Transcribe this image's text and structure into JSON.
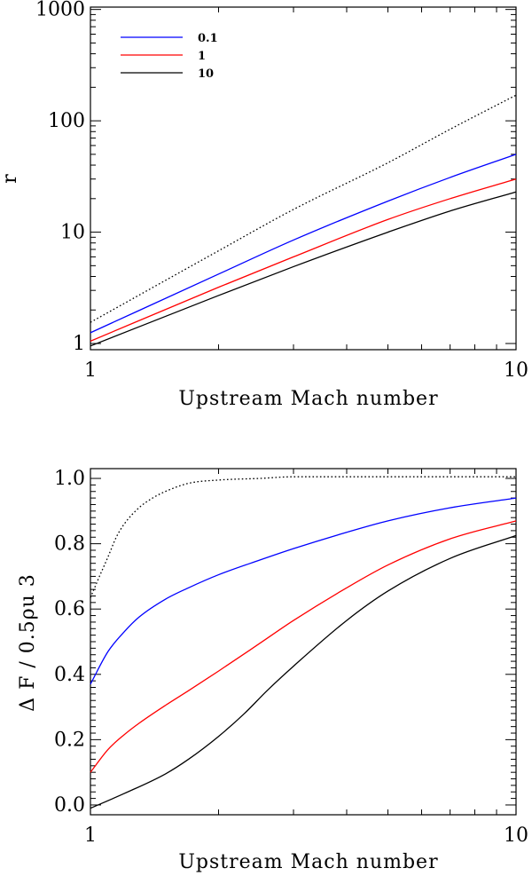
{
  "chart_data": [
    {
      "type": "line",
      "title": "",
      "xlabel": "Upstream Mach number",
      "ylabel": "r",
      "xscale": "log",
      "yscale": "log",
      "xlim": [
        1,
        10
      ],
      "ylim": [
        0.88,
        1050
      ],
      "x_tick_labels": [
        "1",
        "10"
      ],
      "y_tick_labels": [
        "1",
        "10",
        "100",
        "1000"
      ],
      "grid": false,
      "legend_position": "top-left",
      "series": [
        {
          "name": "0.1",
          "color": "#0000ff",
          "style": "solid",
          "x": [
            1,
            2,
            3,
            5,
            7,
            10
          ],
          "y": [
            1.25,
            4.2,
            8.5,
            19,
            31,
            50
          ]
        },
        {
          "name": "1",
          "color": "#ff0000",
          "style": "solid",
          "x": [
            1,
            2,
            3,
            5,
            7,
            10
          ],
          "y": [
            1.05,
            3.2,
            6.0,
            13,
            20,
            30
          ]
        },
        {
          "name": "10",
          "color": "#000000",
          "style": "solid",
          "x": [
            1,
            2,
            3,
            5,
            7,
            10
          ],
          "y": [
            0.95,
            2.7,
            4.9,
            10,
            15.5,
            23
          ]
        },
        {
          "name": "",
          "color": "#000000",
          "style": "dotted",
          "x": [
            1,
            2,
            3,
            5,
            7,
            10
          ],
          "y": [
            1.55,
            6.8,
            16,
            42,
            84,
            170
          ]
        }
      ]
    },
    {
      "type": "line",
      "title": "",
      "xlabel": "Upstream Mach number",
      "ylabel": "Δ F / 0.5ρu 3",
      "xscale": "log",
      "yscale": "linear",
      "xlim": [
        1,
        10
      ],
      "ylim": [
        -0.03,
        1.03
      ],
      "x_tick_labels": [
        "1",
        "10"
      ],
      "y_tick_labels": [
        "0.0",
        "0.2",
        "0.4",
        "0.6",
        "0.8",
        "1.0"
      ],
      "grid": false,
      "series": [
        {
          "name": "0.1",
          "color": "#0000ff",
          "style": "solid",
          "x": [
            1,
            1.1,
            1.2,
            1.3,
            1.5,
            1.7,
            2,
            2.5,
            3,
            4,
            5,
            7,
            10
          ],
          "y": [
            0.37,
            0.47,
            0.53,
            0.575,
            0.63,
            0.665,
            0.705,
            0.75,
            0.785,
            0.835,
            0.87,
            0.91,
            0.94
          ]
        },
        {
          "name": "1",
          "color": "#ff0000",
          "style": "solid",
          "x": [
            1,
            1.1,
            1.2,
            1.3,
            1.5,
            1.7,
            2,
            2.5,
            3,
            4,
            5,
            7,
            10
          ],
          "y": [
            0.1,
            0.17,
            0.215,
            0.25,
            0.305,
            0.35,
            0.41,
            0.495,
            0.565,
            0.665,
            0.735,
            0.815,
            0.87
          ]
        },
        {
          "name": "10",
          "color": "#000000",
          "style": "solid",
          "x": [
            1,
            1.2,
            1.5,
            1.7,
            2,
            2.3,
            2.6,
            3,
            4,
            5,
            7,
            10
          ],
          "y": [
            -0.01,
            0.035,
            0.095,
            0.14,
            0.21,
            0.28,
            0.35,
            0.425,
            0.565,
            0.655,
            0.755,
            0.825
          ]
        },
        {
          "name": "",
          "color": "#000000",
          "style": "dotted",
          "x": [
            1,
            1.05,
            1.1,
            1.15,
            1.2,
            1.3,
            1.4,
            1.5,
            1.7,
            2,
            2.5,
            3,
            4,
            5,
            7,
            10
          ],
          "y": [
            0.635,
            0.7,
            0.76,
            0.82,
            0.86,
            0.91,
            0.94,
            0.96,
            0.985,
            0.995,
            1.0,
            1.005,
            1.005,
            1.005,
            1.005,
            1.005
          ]
        }
      ]
    }
  ]
}
